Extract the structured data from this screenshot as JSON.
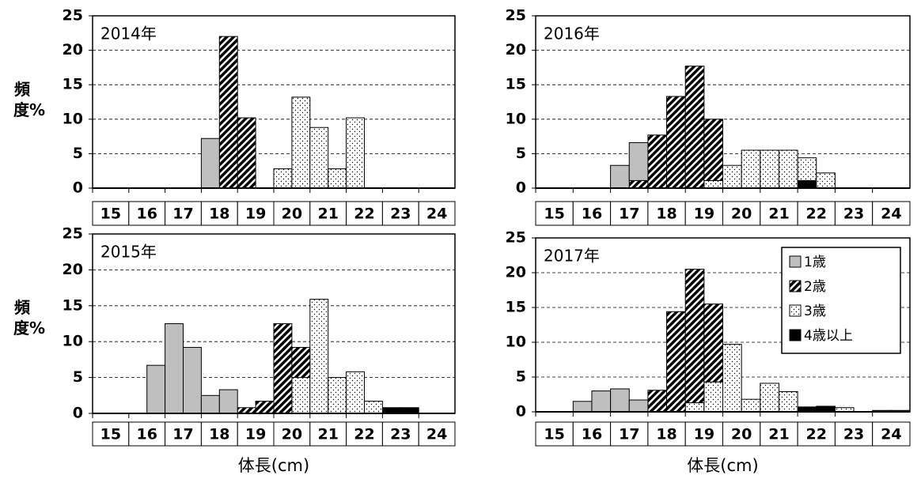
{
  "chart_data": [
    {
      "type": "histogram",
      "title": "2014年",
      "ylabel": "頻度%",
      "bins": [
        15,
        15.5,
        16,
        16.5,
        17,
        17.5,
        18,
        18.5,
        19,
        19.5,
        20,
        20.5,
        21,
        21.5,
        22,
        22.5,
        23,
        23.5,
        24,
        24.5,
        25
      ],
      "xlim": [
        15,
        25
      ],
      "xticks": [
        15,
        16,
        17,
        18,
        19,
        20,
        21,
        22,
        23,
        24
      ],
      "ylim": [
        0,
        25
      ],
      "yticks": [
        0,
        5,
        10,
        15,
        20,
        25
      ],
      "grid": true,
      "series": [
        {
          "color": "#bfbfbf",
          "pattern": "solid",
          "values": [
            0,
            0,
            0,
            0,
            0,
            0,
            7.2,
            0,
            0,
            0,
            0,
            0,
            0,
            0,
            0,
            0,
            0,
            0,
            0,
            0
          ]
        },
        {
          "color": "#000000",
          "pattern": "hatch",
          "values": [
            0,
            0,
            0,
            0,
            0,
            0,
            0,
            22,
            10.2,
            0,
            0,
            0,
            0,
            0,
            0,
            0,
            0,
            0,
            0,
            0
          ]
        },
        {
          "color": "#000000",
          "pattern": "dots",
          "values": [
            0,
            0,
            0,
            0,
            0,
            0,
            0,
            0,
            0,
            0,
            2.8,
            13.2,
            8.8,
            2.8,
            10.2,
            0,
            0,
            0,
            0,
            0
          ]
        },
        {
          "color": "#000000",
          "pattern": "solid",
          "values": [
            0,
            0,
            0,
            0,
            0,
            0,
            0,
            0,
            0,
            0,
            0,
            0,
            0,
            0,
            0,
            0,
            0,
            0,
            0,
            0
          ]
        }
      ]
    },
    {
      "type": "histogram",
      "title": "2016年",
      "bins": [
        15,
        15.5,
        16,
        16.5,
        17,
        17.5,
        18,
        18.5,
        19,
        19.5,
        20,
        20.5,
        21,
        21.5,
        22,
        22.5,
        23,
        23.5,
        24,
        24.5,
        25
      ],
      "xlim": [
        15,
        25
      ],
      "xticks": [
        15,
        16,
        17,
        18,
        19,
        20,
        21,
        22,
        23,
        24
      ],
      "ylim": [
        0,
        25
      ],
      "yticks": [
        0,
        5,
        10,
        15,
        20,
        25
      ],
      "grid": true,
      "series": [
        {
          "color": "#bfbfbf",
          "pattern": "solid",
          "values": [
            0,
            0,
            0,
            0,
            3.3,
            5.5,
            0,
            0,
            0,
            0,
            0,
            0,
            0,
            0,
            0,
            0,
            0,
            0,
            0,
            0
          ]
        },
        {
          "color": "#000000",
          "pattern": "hatch",
          "values": [
            0,
            0,
            0,
            0,
            0,
            1.1,
            7.7,
            13.3,
            17.7,
            8.9,
            0,
            0,
            0,
            0,
            0,
            0,
            0,
            0,
            0,
            0
          ]
        },
        {
          "color": "#000000",
          "pattern": "dots",
          "values": [
            0,
            0,
            0,
            0,
            0,
            0,
            0,
            0,
            0,
            1.1,
            3.3,
            5.5,
            5.5,
            5.5,
            3.3,
            2.2,
            0,
            0,
            0,
            0
          ]
        },
        {
          "color": "#000000",
          "pattern": "solid",
          "values": [
            0,
            0,
            0,
            0,
            0,
            0,
            0,
            0,
            0,
            0,
            0,
            0,
            0,
            0,
            1.1,
            0,
            0,
            0,
            0,
            0
          ]
        }
      ]
    },
    {
      "type": "histogram",
      "title": "2015年",
      "ylabel": "頻度%",
      "xlabel": "体長(cm)",
      "bins": [
        15,
        15.5,
        16,
        16.5,
        17,
        17.5,
        18,
        18.5,
        19,
        19.5,
        20,
        20.5,
        21,
        21.5,
        22,
        22.5,
        23,
        23.5,
        24,
        24.5,
        25
      ],
      "xlim": [
        15,
        25
      ],
      "xticks": [
        15,
        16,
        17,
        18,
        19,
        20,
        21,
        22,
        23,
        24
      ],
      "ylim": [
        0,
        25
      ],
      "yticks": [
        0,
        5,
        10,
        15,
        20,
        25
      ],
      "grid": true,
      "series": [
        {
          "color": "#bfbfbf",
          "pattern": "solid",
          "values": [
            0,
            0,
            0,
            6.7,
            12.5,
            9.2,
            2.5,
            3.3,
            0,
            0,
            0,
            0,
            0,
            0,
            0,
            0,
            0,
            0,
            0,
            0
          ]
        },
        {
          "color": "#000000",
          "pattern": "hatch",
          "values": [
            0,
            0,
            0,
            0,
            0,
            0,
            0,
            0,
            0.8,
            1.7,
            12.5,
            4.2,
            0,
            0,
            0,
            0,
            0,
            0,
            0,
            0
          ]
        },
        {
          "color": "#000000",
          "pattern": "dots",
          "values": [
            0,
            0,
            0,
            0,
            0,
            0,
            0,
            0,
            0,
            0,
            0,
            5,
            15.9,
            5,
            5.8,
            1.7,
            0,
            0,
            0,
            0
          ]
        },
        {
          "color": "#000000",
          "pattern": "solid",
          "values": [
            0,
            0,
            0,
            0,
            0,
            0,
            0,
            0,
            0,
            0,
            0,
            0,
            0,
            0,
            0,
            0,
            0.8,
            0.8,
            0,
            0
          ]
        }
      ]
    },
    {
      "type": "histogram",
      "title": "2017年",
      "xlabel": "体長(cm)",
      "legend": "upper right",
      "bins": [
        15,
        15.5,
        16,
        16.5,
        17,
        17.5,
        18,
        18.5,
        19,
        19.5,
        20,
        20.5,
        21,
        21.5,
        22,
        22.5,
        23,
        23.5,
        24,
        24.5,
        25
      ],
      "xlim": [
        15,
        25
      ],
      "xticks": [
        15,
        16,
        17,
        18,
        19,
        20,
        21,
        22,
        23,
        24
      ],
      "ylim": [
        0,
        25
      ],
      "yticks": [
        0,
        5,
        10,
        15,
        20,
        25
      ],
      "grid": true,
      "series": [
        {
          "name": "1歳",
          "color": "#bfbfbf",
          "pattern": "solid",
          "values": [
            0,
            0,
            1.5,
            3.0,
            3.3,
            1.7,
            0,
            0,
            0,
            0,
            0,
            0,
            0,
            0,
            0,
            0,
            0,
            0,
            0,
            0
          ]
        },
        {
          "name": "2歳",
          "color": "#000000",
          "pattern": "hatch",
          "values": [
            0,
            0,
            0,
            0,
            0,
            0,
            3.1,
            14.4,
            19.2,
            11.2,
            0,
            0,
            0,
            0,
            0,
            0,
            0,
            0,
            0,
            0
          ]
        },
        {
          "name": "3歳",
          "color": "#000000",
          "pattern": "dots",
          "values": [
            0,
            0,
            0,
            0,
            0,
            0,
            0,
            0,
            1.3,
            4.3,
            9.7,
            1.8,
            4.1,
            2.9,
            0,
            0,
            0.6,
            0,
            0,
            0
          ]
        },
        {
          "name": "4歳以上",
          "color": "#000000",
          "pattern": "solid",
          "values": [
            0,
            0,
            0,
            0,
            0,
            0,
            0,
            0,
            0,
            0,
            0,
            0,
            0,
            0,
            0.7,
            0.8,
            0,
            0,
            0.2,
            0.2
          ]
        }
      ]
    }
  ]
}
